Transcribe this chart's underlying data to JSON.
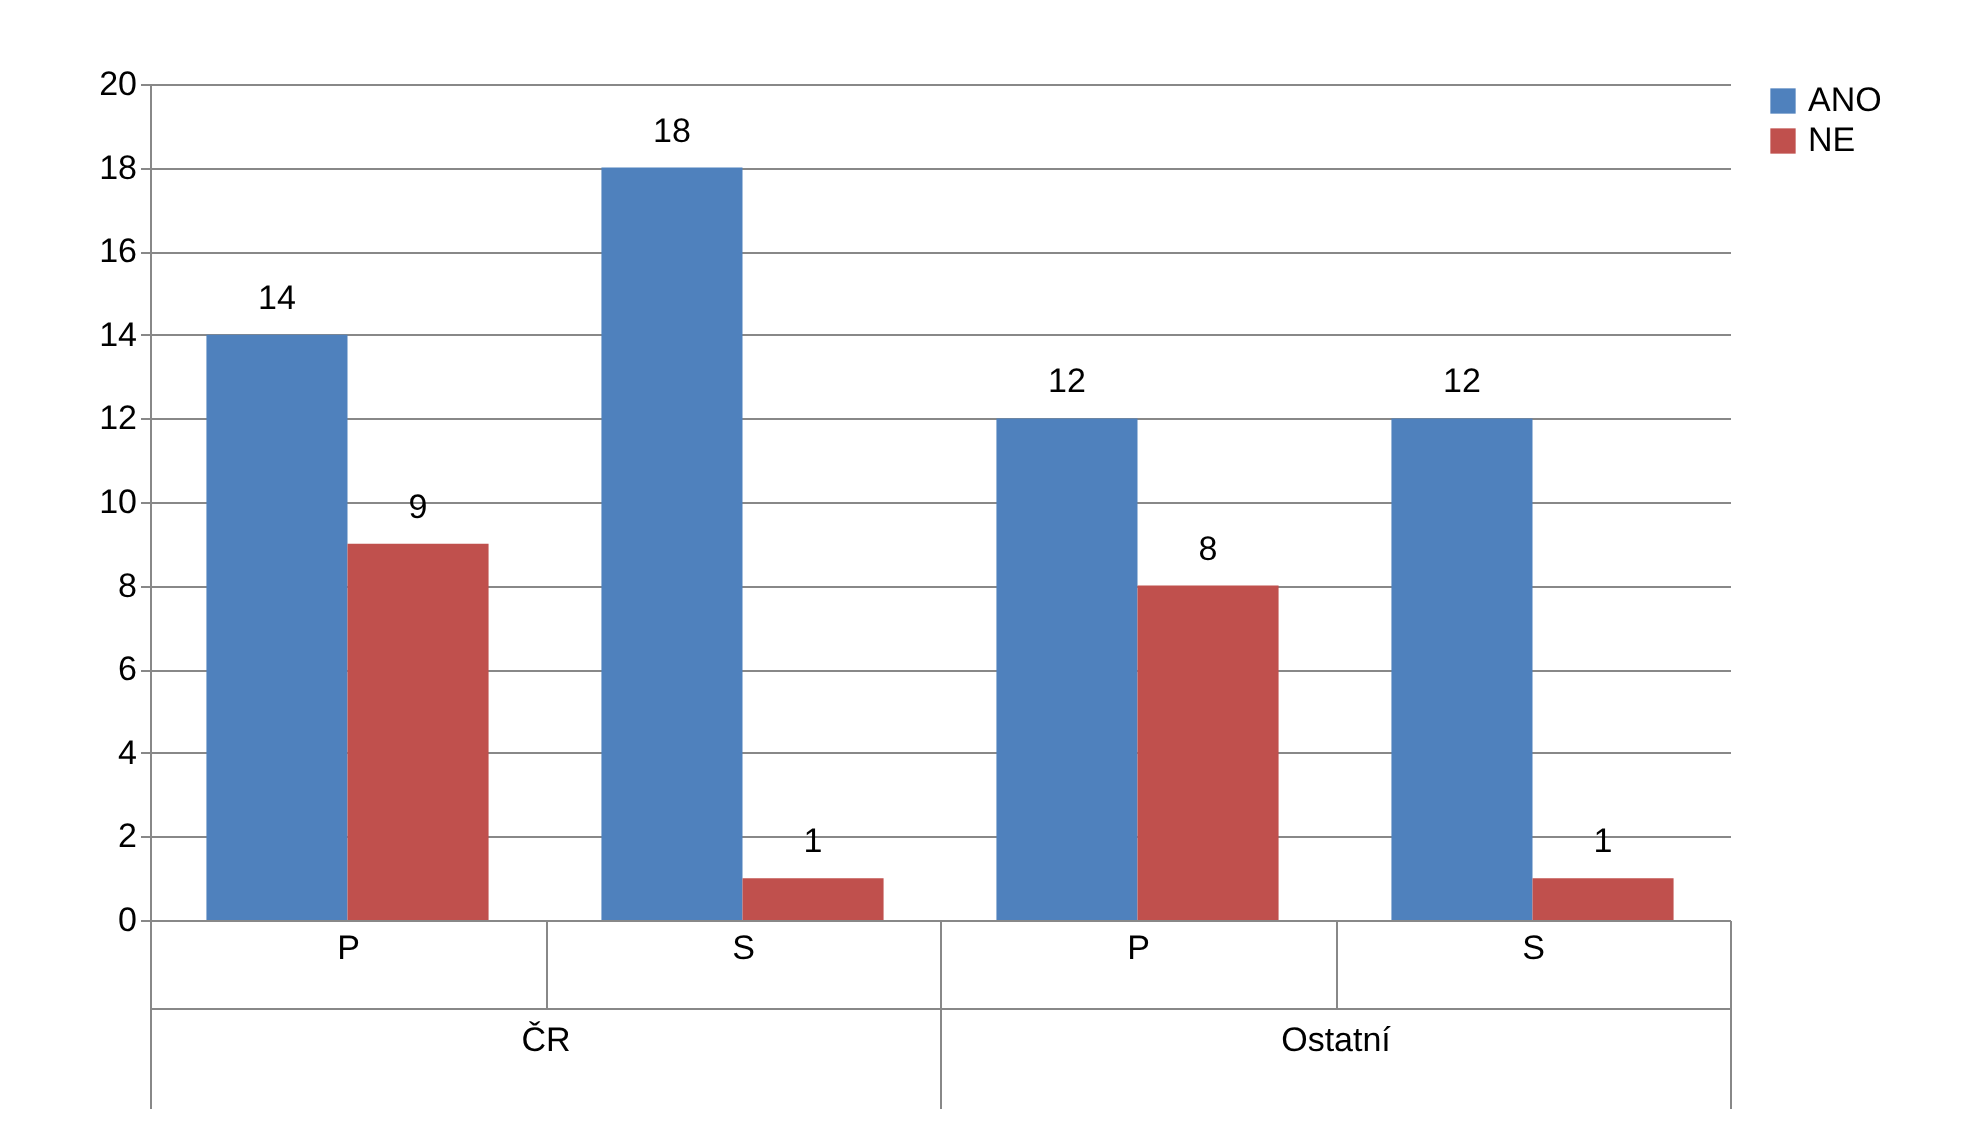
{
  "chart_data": {
    "type": "bar",
    "categories": [
      "P",
      "S",
      "P",
      "S"
    ],
    "annotations": [
      "ČR",
      "Ostatní"
    ],
    "series": [
      {
        "name": "ANO",
        "color": "#4f81bd",
        "values": [
          14,
          18,
          12,
          12
        ]
      },
      {
        "name": "NE",
        "color": "#c0504d",
        "values": [
          9,
          1,
          8,
          1
        ]
      }
    ],
    "ylim": [
      0,
      20
    ],
    "yticks": [
      0,
      2,
      4,
      6,
      8,
      10,
      12,
      14,
      16,
      18,
      20
    ],
    "grid": "y",
    "legend": "right",
    "data_labels": true
  }
}
